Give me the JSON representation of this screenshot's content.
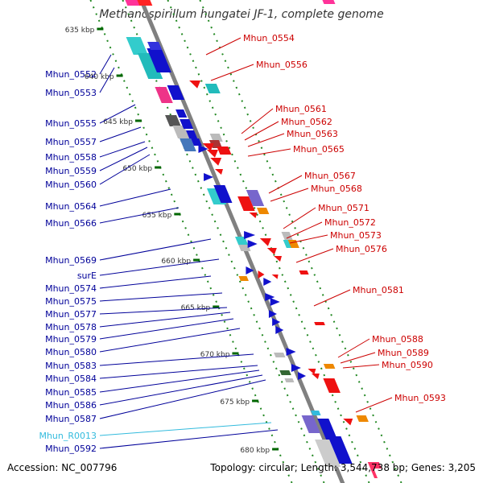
{
  "title": "Methanospirillum hungatei JF-1, complete genome",
  "footer": {
    "accession_label": "Accession: NC_007796",
    "topology_label": "Topology: circular; Length: 3,544,738 bp; Genes: 3,205"
  },
  "colors": {
    "backbone": "#808080",
    "forward_labels": "#000099",
    "reverse_labels": "#cc0000",
    "rna_label": "#33bbdd",
    "tick_marks": "#006600",
    "guide_dots": "#228822"
  },
  "kbp_ticks": [
    "635 kbp",
    "640 kbp",
    "645 kbp",
    "650 kbp",
    "655 kbp",
    "660 kbp",
    "665 kbp",
    "670 kbp",
    "675 kbp",
    "680 kbp"
  ],
  "left_labels": [
    "Mhun_0552",
    "Mhun_0553",
    "Mhun_0555",
    "Mhun_0557",
    "Mhun_0558",
    "Mhun_0559",
    "Mhun_0560",
    "Mhun_0564",
    "Mhun_0566",
    "Mhun_0569",
    "surE",
    "Mhun_0574",
    "Mhun_0575",
    "Mhun_0577",
    "Mhun_0578",
    "Mhun_0579",
    "Mhun_0580",
    "Mhun_0583",
    "Mhun_0584",
    "Mhun_0585",
    "Mhun_0586",
    "Mhun_0587",
    "Mhun_R0013",
    "Mhun_0592"
  ],
  "right_labels": [
    "Mhun_0554",
    "Mhun_0556",
    "Mhun_0561",
    "Mhun_0562",
    "Mhun_0563",
    "Mhun_0565",
    "Mhun_0567",
    "Mhun_0568",
    "Mhun_0571",
    "Mhun_0572",
    "Mhun_0573",
    "Mhun_0576",
    "Mhun_0581",
    "Mhun_0588",
    "Mhun_0589",
    "Mhun_0590",
    "Mhun_0593"
  ]
}
